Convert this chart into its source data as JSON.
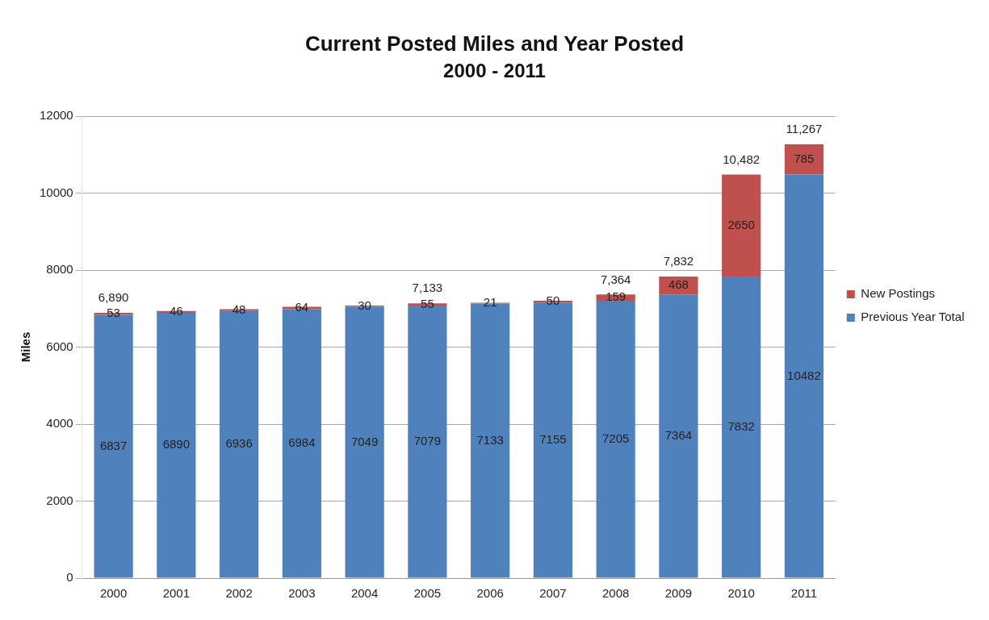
{
  "chart_data": {
    "type": "bar",
    "title": "Current Posted Miles and Year Posted",
    "subtitle": "2000 - 2011",
    "ylabel": "Miles",
    "categories": [
      "2000",
      "2001",
      "2002",
      "2003",
      "2004",
      "2005",
      "2006",
      "2007",
      "2008",
      "2009",
      "2010",
      "2011"
    ],
    "series": [
      {
        "name": "Previous Year Total",
        "color": "#4f81bd",
        "values": [
          6837,
          6890,
          6936,
          6984,
          7049,
          7079,
          7133,
          7155,
          7205,
          7364,
          7832,
          10482
        ]
      },
      {
        "name": "New Postings",
        "color": "#c0504d",
        "values": [
          53,
          46,
          48,
          64,
          30,
          55,
          21,
          50,
          159,
          468,
          2650,
          785
        ]
      }
    ],
    "stacked": true,
    "data_labels": true,
    "totals": [
      "6,890",
      null,
      null,
      null,
      null,
      "7,133",
      null,
      null,
      "7,364",
      "7,832",
      "10,482",
      "11,267"
    ],
    "ylim": [
      0,
      12000
    ],
    "yticks": [
      0,
      2000,
      4000,
      6000,
      8000,
      10000,
      12000
    ],
    "grid": "y",
    "legend": "right"
  }
}
